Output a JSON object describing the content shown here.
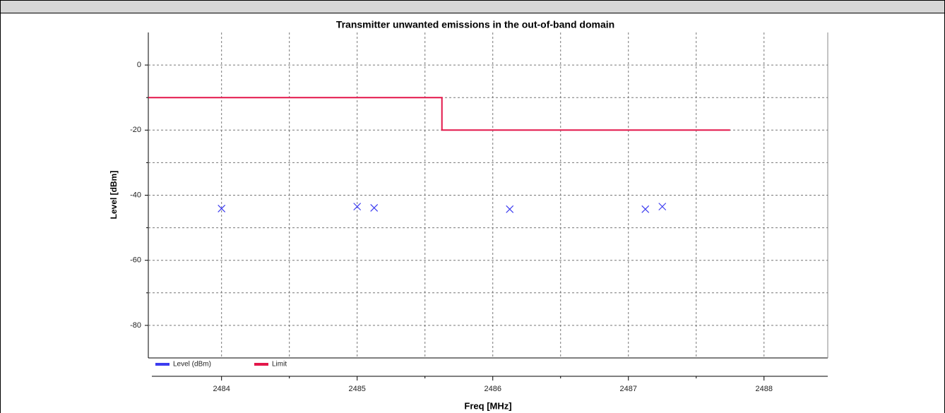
{
  "chart_data": {
    "type": "line",
    "title": "Transmitter unwanted emissions in the out-of-band domain",
    "x_label": "Freq [MHz]",
    "y_label": "Level [dBm]",
    "xlim": [
      2483.46,
      2488.47
    ],
    "ylim": [
      -90,
      10
    ],
    "xticks": [
      2484,
      2485,
      2486,
      2487,
      2488
    ],
    "x_minor_ticks": [
      2484.5,
      2485.5,
      2486.5,
      2487.5
    ],
    "yticks": [
      0,
      -20,
      -40,
      -60,
      -80
    ],
    "y_minor_ticks": [
      -10,
      -30,
      -50,
      -70
    ],
    "grid": true,
    "series": [
      {
        "name": "Level (dBm)",
        "type": "scatter",
        "color": "#3c3cf0",
        "x": [
          2484,
          2485,
          2485.125,
          2486.125,
          2487.125,
          2487.25
        ],
        "values": [
          -44.1,
          -43.5,
          -43.9,
          -44.3,
          -44.3,
          -43.5
        ]
      },
      {
        "name": "Limit",
        "type": "line",
        "color": "#e3174a",
        "x": [
          2483.46,
          2485.625,
          2485.625,
          2487.75
        ],
        "values": [
          -10,
          -10,
          -20,
          -20
        ]
      }
    ]
  }
}
